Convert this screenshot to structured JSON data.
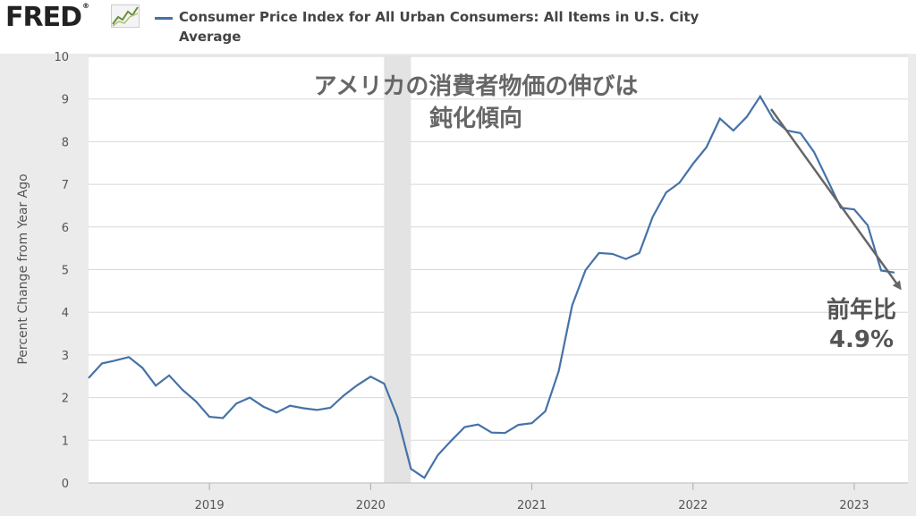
{
  "header": {
    "logo_text": "FRED",
    "logo_mark": "®",
    "series_title": "Consumer Price Index for All Urban Consumers: All Items in U.S. City Average"
  },
  "colors": {
    "series": "#4572a7",
    "recession": "#e3e3e3",
    "plot_bg": "#ffffff",
    "page_bg": "#ebebeb",
    "grid": "#d8d8d8",
    "arrow": "#666666"
  },
  "annotations": {
    "title_line1": "アメリカの消費者物価の伸びは",
    "title_line2": "鈍化傾向",
    "label_line1": "前年比",
    "label_line2": "4.9%"
  },
  "chart_data": {
    "type": "line",
    "ylabel": "Percent Change from Year Ago",
    "ylim": [
      0,
      10
    ],
    "yticks": [
      "0",
      "1",
      "2",
      "3",
      "4",
      "5",
      "6",
      "7",
      "8",
      "9",
      "10"
    ],
    "xticks": [
      "2019",
      "2020",
      "2021",
      "2022",
      "2023"
    ],
    "grid": true,
    "recession": {
      "start": "2020-02",
      "end": "2020-04"
    },
    "series": [
      {
        "x": [
          "2018-04",
          "2018-05",
          "2018-06",
          "2018-07",
          "2018-08",
          "2018-09",
          "2018-10",
          "2018-11",
          "2018-12",
          "2019-01",
          "2019-02",
          "2019-03",
          "2019-04",
          "2019-05",
          "2019-06",
          "2019-07",
          "2019-08",
          "2019-09",
          "2019-10",
          "2019-11",
          "2019-12",
          "2020-01",
          "2020-02",
          "2020-03",
          "2020-04",
          "2020-05",
          "2020-06",
          "2020-07",
          "2020-08",
          "2020-09",
          "2020-10",
          "2020-11",
          "2020-12",
          "2021-01",
          "2021-02",
          "2021-03",
          "2021-04",
          "2021-05",
          "2021-06",
          "2021-07",
          "2021-08",
          "2021-09",
          "2021-10",
          "2021-11",
          "2021-12",
          "2022-01",
          "2022-02",
          "2022-03",
          "2022-04",
          "2022-05",
          "2022-06",
          "2022-07",
          "2022-08",
          "2022-09",
          "2022-10",
          "2022-11",
          "2022-12",
          "2023-01",
          "2023-02",
          "2023-03",
          "2023-04"
        ],
        "y": [
          2.46,
          2.8,
          2.87,
          2.95,
          2.7,
          2.28,
          2.52,
          2.18,
          1.91,
          1.55,
          1.52,
          1.86,
          2.0,
          1.79,
          1.65,
          1.81,
          1.75,
          1.71,
          1.76,
          2.05,
          2.29,
          2.49,
          2.33,
          1.54,
          0.33,
          0.12,
          0.65,
          0.99,
          1.31,
          1.37,
          1.18,
          1.17,
          1.36,
          1.4,
          1.68,
          2.62,
          4.16,
          4.99,
          5.39,
          5.37,
          5.25,
          5.39,
          6.24,
          6.81,
          7.04,
          7.48,
          7.87,
          8.54,
          8.26,
          8.58,
          9.06,
          8.52,
          8.26,
          8.2,
          7.76,
          7.11,
          6.45,
          6.41,
          6.04,
          4.98,
          4.93
        ]
      }
    ]
  }
}
